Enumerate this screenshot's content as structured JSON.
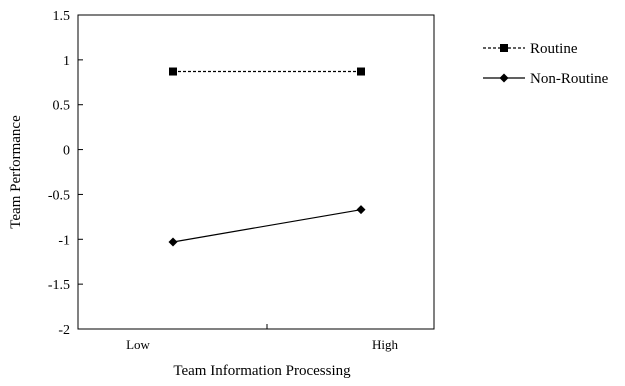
{
  "chart_data": {
    "type": "line",
    "title": "",
    "xlabel": "Team Information Processing",
    "ylabel": "Team Performance",
    "categories": [
      "Low",
      "High"
    ],
    "ylim": [
      -2,
      1.5
    ],
    "yticks": [
      "1.5",
      "1",
      "0.5",
      "0",
      "-0.5",
      "-1",
      "-1.5",
      "-2"
    ],
    "grid": false,
    "legend_position": "right",
    "series": [
      {
        "name": "Routine",
        "values": [
          0.87,
          0.87
        ],
        "marker": "square",
        "line_style": "dashed",
        "color": "#000000"
      },
      {
        "name": "Non-Routine",
        "values": [
          -1.03,
          -0.67
        ],
        "marker": "diamond",
        "line_style": "solid",
        "color": "#000000"
      }
    ]
  }
}
